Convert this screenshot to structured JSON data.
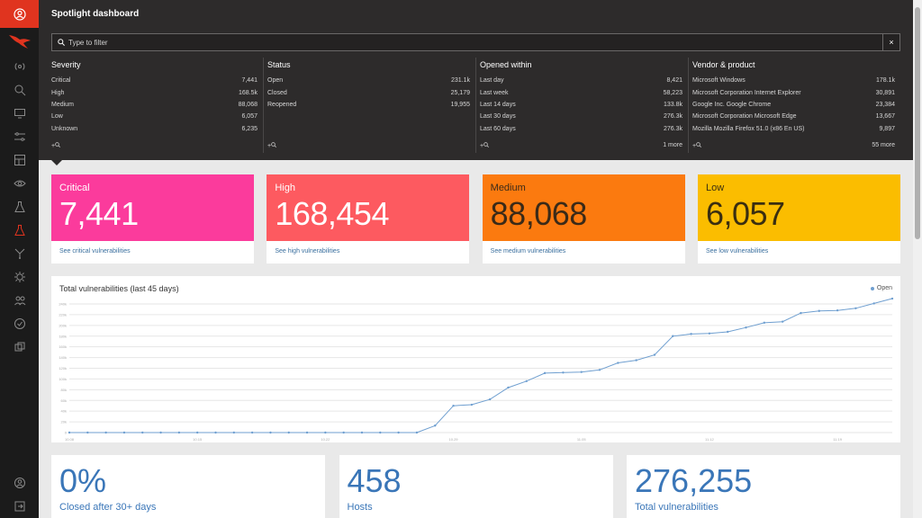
{
  "page_title": "Spotlight dashboard",
  "filter": {
    "placeholder": "Type to filter",
    "clear_label": "×"
  },
  "facets": [
    {
      "title": "Severity",
      "rows": [
        [
          "Critical",
          "7,441"
        ],
        [
          "High",
          "168.5k"
        ],
        [
          "Medium",
          "88,068"
        ],
        [
          "Low",
          "6,057"
        ],
        [
          "Unknown",
          "6,235"
        ]
      ],
      "more": ""
    },
    {
      "title": "Status",
      "rows": [
        [
          "Open",
          "231.1k"
        ],
        [
          "Closed",
          "25,179"
        ],
        [
          "Reopened",
          "19,955"
        ]
      ],
      "more": ""
    },
    {
      "title": "Opened within",
      "rows": [
        [
          "Last day",
          "8,421"
        ],
        [
          "Last week",
          "58,223"
        ],
        [
          "Last 14 days",
          "133.8k"
        ],
        [
          "Last 30 days",
          "276.3k"
        ],
        [
          "Last 60 days",
          "276.3k"
        ]
      ],
      "more": "1 more"
    },
    {
      "title": "Vendor & product",
      "rows": [
        [
          "Microsoft Windows",
          "178.1k"
        ],
        [
          "Microsoft Corporation Internet Explorer",
          "30,891"
        ],
        [
          "Google Inc. Google Chrome",
          "23,384"
        ],
        [
          "Microsoft Corporation Microsoft Edge",
          "13,667"
        ],
        [
          "Mozilla Mozilla Firefox 51.0 (x86 En US)",
          "9,897"
        ]
      ],
      "more": "55 more"
    }
  ],
  "facet_add_label": "+",
  "severity_cards": [
    {
      "key": "critical",
      "label": "Critical",
      "value": "7,441",
      "link": "See critical vulnerabilities"
    },
    {
      "key": "high",
      "label": "High",
      "value": "168,454",
      "link": "See high vulnerabilities"
    },
    {
      "key": "medium",
      "label": "Medium",
      "value": "88,068",
      "link": "See medium vulnerabilities"
    },
    {
      "key": "low",
      "label": "Low",
      "value": "6,057",
      "link": "See low vulnerabilities"
    }
  ],
  "colors": {
    "critical": "#fb3b9c",
    "high": "#fd5a60",
    "medium": "#fb7a0f",
    "low": "#fbbd00",
    "brand": "#e0341f",
    "series": "#6f9fd0"
  },
  "chart_data": {
    "type": "line",
    "title": "Total vulnerabilities (last 45 days)",
    "legend": "Open",
    "legend_position": "top-right",
    "grid": true,
    "ylim": [
      0,
      240000
    ],
    "y_ticks": [
      "0",
      "20k",
      "40k",
      "60k",
      "80k",
      "100k",
      "120k",
      "140k",
      "160k",
      "180k",
      "200k",
      "220k",
      "240k"
    ],
    "x_tick_labels": [
      "10.08",
      "10.15",
      "10.22",
      "10.29",
      "11.05",
      "11.12",
      "11.19"
    ],
    "series": [
      {
        "name": "Open",
        "values": [
          0,
          0,
          0,
          0,
          0,
          0,
          0,
          0,
          0,
          0,
          0,
          0,
          0,
          0,
          0,
          0,
          0,
          0,
          0,
          0,
          13000,
          50000,
          52000,
          62000,
          84000,
          96000,
          111000,
          112000,
          113000,
          117000,
          130000,
          135000,
          145000,
          180000,
          184000,
          185000,
          188000,
          196000,
          205000,
          207000,
          223000,
          227000,
          228000,
          232000,
          241000,
          250000
        ]
      }
    ]
  },
  "stats": [
    {
      "value": "0%",
      "label": "Closed after 30+ days"
    },
    {
      "value": "458",
      "label": "Hosts"
    },
    {
      "value": "276,255",
      "label": "Total vulnerabilities"
    }
  ],
  "sidebar_icons": [
    "radar-icon",
    "search-icon",
    "monitor-icon",
    "sliders-icon",
    "layout-icon",
    "eye-icon",
    "flask-icon",
    "flask-active-icon",
    "network-icon",
    "bug-icon",
    "users-icon",
    "shield-icon",
    "puzzle-icon"
  ],
  "sidebar_bottom_icons": [
    "account-icon",
    "logout-icon"
  ]
}
